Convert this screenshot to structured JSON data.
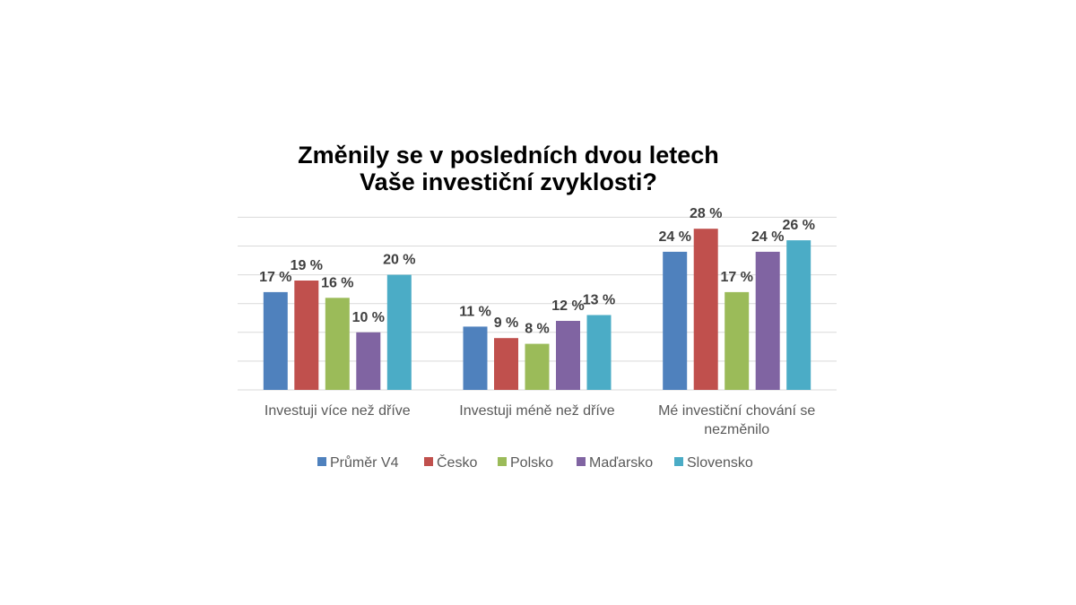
{
  "chart_data": {
    "type": "bar",
    "title": [
      "Změnily se v posledních dvou letech",
      "Vaše investiční zvyklosti?"
    ],
    "categories": [
      [
        "Investuji více než dříve"
      ],
      [
        "Investuji méně než dříve"
      ],
      [
        "Mé investiční chování se",
        "nezměnilo"
      ]
    ],
    "series": [
      {
        "name": "Průměr V4",
        "color": "#4f81bd",
        "values": [
          17,
          11,
          24
        ]
      },
      {
        "name": "Česko",
        "color": "#c0504d",
        "values": [
          19,
          9,
          28
        ]
      },
      {
        "name": "Polsko",
        "color": "#9bbb59",
        "values": [
          16,
          8,
          17
        ]
      },
      {
        "name": "Maďarsko",
        "color": "#8064a2",
        "values": [
          10,
          12,
          24
        ]
      },
      {
        "name": "Slovensko",
        "color": "#4bacc6",
        "values": [
          20,
          13,
          26
        ]
      }
    ],
    "value_suffix": " %",
    "ylim": [
      0,
      30
    ],
    "grid": true,
    "legend_position": "bottom",
    "xlabel": "",
    "ylabel": ""
  }
}
